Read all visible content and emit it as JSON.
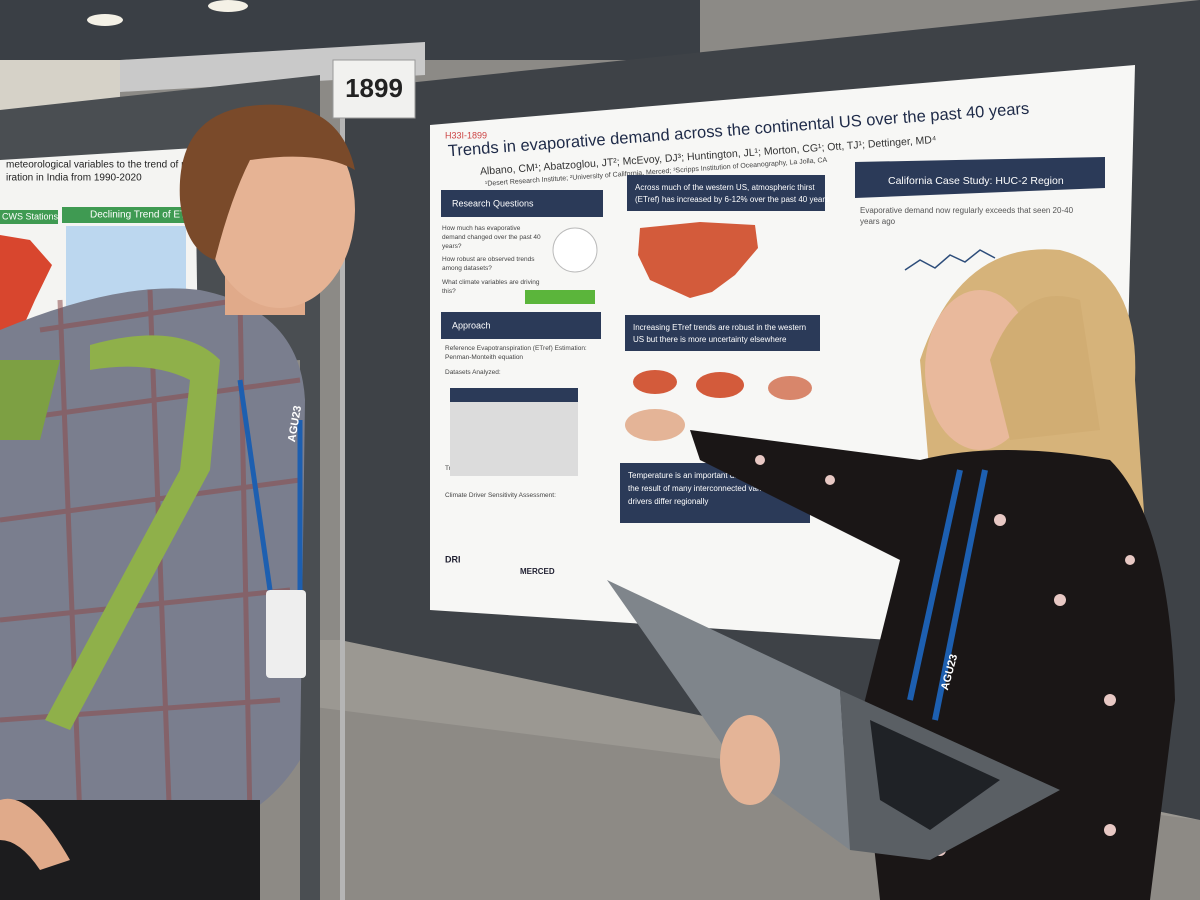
{
  "booth_number": "1899",
  "poster": {
    "code": "H33I-1899",
    "title": "Trends in evaporative demand across the continental US over the past 40 years",
    "authors": "Albano, CM¹; Abatzoglou, JT²; McEvoy, DJ³; Huntington, JL¹; Morton, CG¹; Ott, TJ¹; Dettinger, MD⁴",
    "affiliations": "¹Desert Research Institute; ²University of California, Merced; ³Scripps Institution of Oceanography, La Jolla, CA",
    "research_questions": {
      "heading": "Research Questions",
      "items": [
        "How much has evaporative demand changed over the past 40 years?",
        "How robust are observed trends among datasets?",
        "What climate variables are driving this?"
      ]
    },
    "approach": {
      "heading": "Approach",
      "items": [
        "Reference Evapotranspiration (ETref) Estimation: Penman-Monteith equation",
        "Datasets Analyzed:",
        "Trend Assessment:",
        "Climate Driver Sensitivity Assessment:"
      ]
    },
    "finding_1": [
      "Across much of the western US, atmospheric thirst",
      "(ETref) has increased by 6-12% over the past 40 years"
    ],
    "finding_2": [
      "Increasing ETref trends are robust in the western",
      "US but there is more uncertainty elsewhere"
    ],
    "finding_3": [
      "Temperature is an important driver, but trends are",
      "the result of many interconnected variables;",
      "drivers differ regionally"
    ],
    "case_study": {
      "heading": "California Case Study: HUC-2 Region",
      "lines": [
        "Evaporative demand now regularly exceeds that seen 20-40",
        "years ago"
      ]
    },
    "logos": [
      "DRI",
      "MERCED"
    ]
  },
  "left_poster": {
    "title": [
      "meteorological variables to the trend of reference",
      "iration in India from 1990-2020"
    ],
    "panel_left": "CWS Stations",
    "panel_right": "Declining Trend of ETo"
  },
  "badges": [
    "AGU23",
    "AGU23"
  ]
}
